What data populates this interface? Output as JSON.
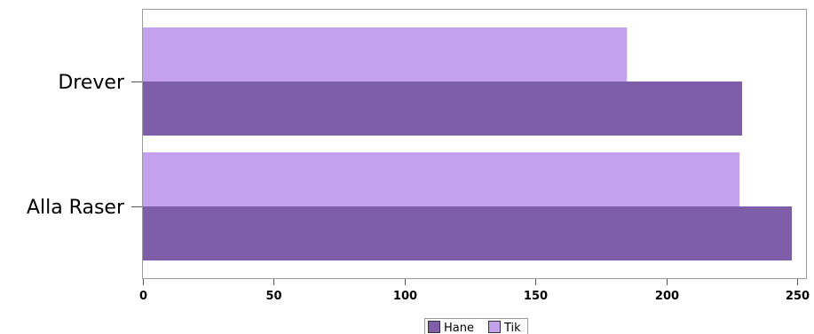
{
  "chart_data": {
    "type": "bar",
    "orientation": "horizontal",
    "categories": [
      "Drever",
      "Alla Raser"
    ],
    "series": [
      {
        "name": "Tik",
        "values": [
          185,
          228
        ],
        "color": "#c3a1ec"
      },
      {
        "name": "Hane",
        "values": [
          229,
          248
        ],
        "color": "#7e5ea8"
      }
    ],
    "xlim": [
      0,
      250
    ],
    "xticks": [
      0,
      50,
      100,
      150,
      200,
      250
    ],
    "legend": {
      "position": "bottom-center",
      "items": [
        {
          "label": "Hane",
          "color": "#7e5ea8"
        },
        {
          "label": "Tik",
          "color": "#c3a1ec"
        }
      ]
    },
    "grid": false
  }
}
